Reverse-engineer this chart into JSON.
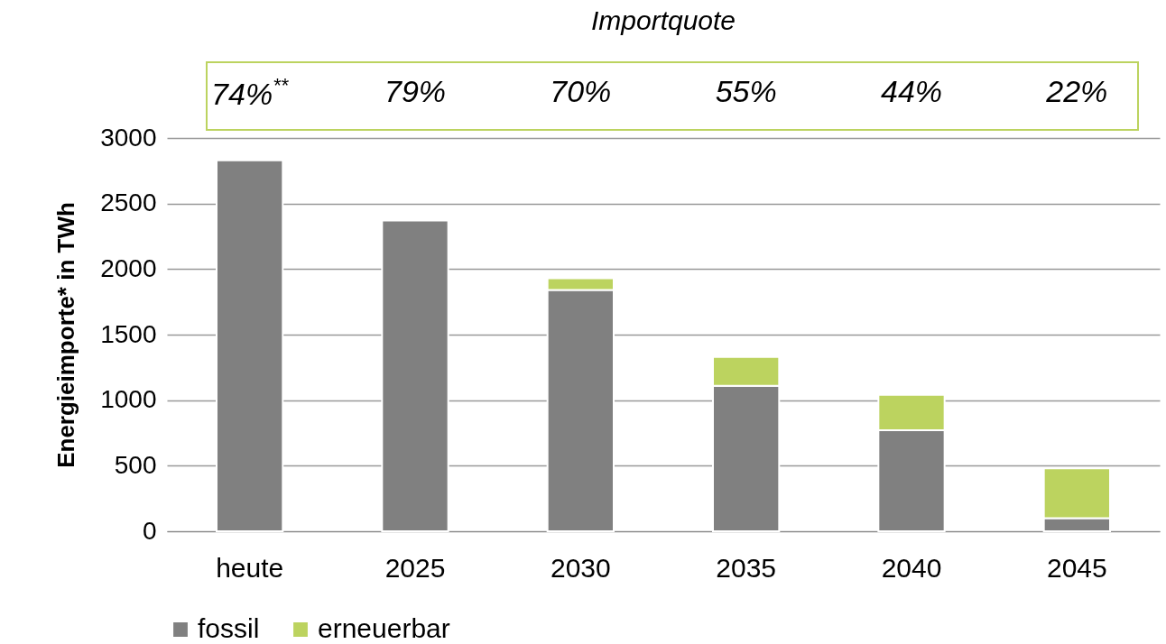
{
  "chart_data": {
    "type": "bar",
    "title": "Importquote",
    "ylabel": "Energieimporte* in TWh",
    "stacked": true,
    "categories": [
      "heute",
      "2025",
      "2030",
      "2035",
      "2040",
      "2045"
    ],
    "series": [
      {
        "name": "fossil",
        "color": "#808080",
        "values": [
          2830,
          2370,
          1840,
          1110,
          770,
          100
        ]
      },
      {
        "name": "erneuerbar",
        "color": "#bcd35f",
        "values": [
          null,
          null,
          90,
          220,
          270,
          380
        ]
      }
    ],
    "ylim": [
      0,
      3000
    ],
    "yticks": [
      0,
      500,
      1000,
      1500,
      2000,
      2500,
      3000
    ],
    "grid": "y",
    "legend": "bottom",
    "annotations": [
      "74%$^{**}$",
      "79%",
      "70%",
      "55%",
      "44%",
      "22%"
    ]
  }
}
